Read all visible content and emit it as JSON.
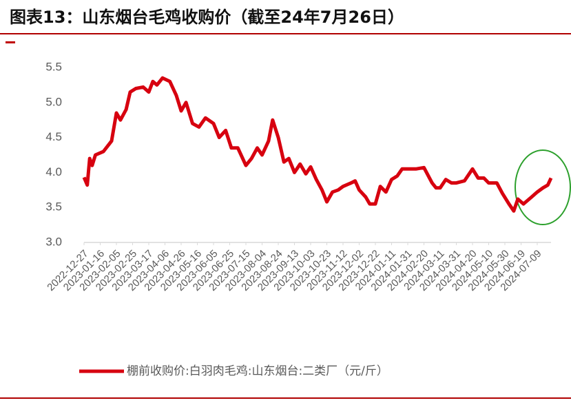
{
  "chart_data": {
    "type": "line",
    "title": "图表13：山东烟台毛鸡收购价（截至24年7月26日）",
    "x": [
      "2022-12-27",
      "2022-12-31",
      "2023-01-03",
      "2023-01-06",
      "2023-01-10",
      "2023-01-20",
      "2023-01-30",
      "2023-02-05",
      "2023-02-10",
      "2023-02-17",
      "2023-02-22",
      "2023-03-01",
      "2023-03-10",
      "2023-03-17",
      "2023-03-22",
      "2023-03-27",
      "2023-04-03",
      "2023-04-12",
      "2023-04-20",
      "2023-04-26",
      "2023-05-02",
      "2023-05-10",
      "2023-05-18",
      "2023-05-26",
      "2023-06-05",
      "2023-06-12",
      "2023-06-20",
      "2023-06-27",
      "2023-07-05",
      "2023-07-15",
      "2023-07-22",
      "2023-07-29",
      "2023-08-04",
      "2023-08-12",
      "2023-08-17",
      "2023-08-24",
      "2023-08-31",
      "2023-09-06",
      "2023-09-13",
      "2023-09-20",
      "2023-09-27",
      "2023-10-03",
      "2023-10-10",
      "2023-10-17",
      "2023-10-23",
      "2023-10-30",
      "2023-11-06",
      "2023-11-12",
      "2023-11-22",
      "2023-11-27",
      "2023-12-02",
      "2023-12-10",
      "2023-12-15",
      "2023-12-22",
      "2023-12-28",
      "2024-01-04",
      "2024-01-11",
      "2024-01-18",
      "2024-01-24",
      "2024-01-31",
      "2024-02-10",
      "2024-02-20",
      "2024-03-01",
      "2024-03-06",
      "2024-03-11",
      "2024-03-18",
      "2024-03-25",
      "2024-03-31",
      "2024-04-10",
      "2024-04-20",
      "2024-04-27",
      "2024-05-04",
      "2024-05-10",
      "2024-05-20",
      "2024-05-27",
      "2024-06-04",
      "2024-06-10",
      "2024-06-15",
      "2024-06-22",
      "2024-07-02",
      "2024-07-09",
      "2024-07-16",
      "2024-07-22",
      "2024-07-26"
    ],
    "series": [
      {
        "name": "棚前收购价:白羽肉毛鸡:山东烟台:二类厂（元/斤）",
        "color": "#d7000f",
        "values": [
          3.93,
          3.82,
          4.2,
          4.1,
          4.25,
          4.3,
          4.45,
          4.85,
          4.75,
          4.9,
          5.15,
          5.2,
          5.22,
          5.15,
          5.3,
          5.25,
          5.35,
          5.3,
          5.1,
          4.88,
          5.0,
          4.7,
          4.65,
          4.78,
          4.7,
          4.5,
          4.6,
          4.35,
          4.35,
          4.1,
          4.2,
          4.35,
          4.25,
          4.45,
          4.75,
          4.5,
          4.15,
          4.2,
          4.0,
          4.12,
          3.98,
          4.08,
          3.9,
          3.75,
          3.58,
          3.72,
          3.75,
          3.8,
          3.85,
          3.88,
          3.75,
          3.65,
          3.55,
          3.55,
          3.8,
          3.72,
          3.9,
          3.95,
          4.05,
          4.05,
          4.05,
          4.07,
          3.85,
          3.78,
          3.78,
          3.9,
          3.85,
          3.85,
          3.88,
          4.05,
          3.92,
          3.92,
          3.85,
          3.85,
          3.7,
          3.55,
          3.45,
          3.62,
          3.55,
          3.65,
          3.72,
          3.78,
          3.82,
          3.92
        ]
      }
    ],
    "xlim": [
      "2022-12-27",
      "2024-07-26"
    ],
    "xticks": [
      "2022-12-27",
      "2023-01-16",
      "2023-02-05",
      "2023-02-25",
      "2023-03-17",
      "2023-04-06",
      "2023-04-26",
      "2023-05-16",
      "2023-06-05",
      "2023-06-25",
      "2023-07-15",
      "2023-08-04",
      "2023-08-24",
      "2023-09-13",
      "2023-10-03",
      "2023-10-23",
      "2023-11-12",
      "2023-12-02",
      "2023-12-22",
      "2024-01-11",
      "2024-01-31",
      "2024-02-20",
      "2024-03-11",
      "2024-03-31",
      "2024-04-20",
      "2024-05-10",
      "2024-05-30",
      "2024-06-19",
      "2024-07-09"
    ],
    "ylim": [
      3.0,
      5.5
    ],
    "yticks": [
      {
        "value": 3.0,
        "label": "3.0"
      },
      {
        "value": 3.5,
        "label": "3.5"
      },
      {
        "value": 4.0,
        "label": "4.0"
      },
      {
        "value": 4.5,
        "label": "4.5"
      },
      {
        "value": 5.0,
        "label": "5.0"
      },
      {
        "value": 5.5,
        "label": "5.5"
      }
    ],
    "grid": false
  }
}
